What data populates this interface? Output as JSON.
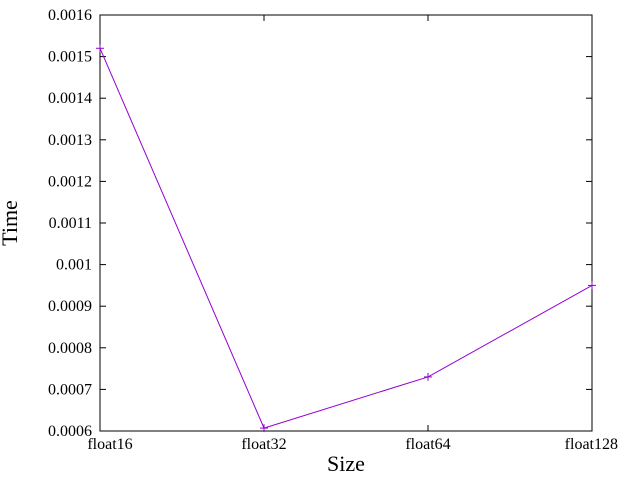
{
  "chart_data": {
    "type": "line",
    "xlabel": "Size",
    "ylabel": "Time",
    "categories": [
      "float16",
      "float32",
      "float64",
      "float128"
    ],
    "series": [
      {
        "values": [
          0.00152,
          0.000607,
          0.00073,
          0.00095
        ],
        "color": "#9400d3"
      }
    ],
    "ylim": [
      0.0006,
      0.0016
    ],
    "yticks": [
      "0.0006",
      "0.0007",
      "0.0008",
      "0.0009",
      "0.001",
      "0.0011",
      "0.0012",
      "0.0013",
      "0.0014",
      "0.0015",
      "0.0016"
    ],
    "grid": false,
    "marker": "plus"
  }
}
